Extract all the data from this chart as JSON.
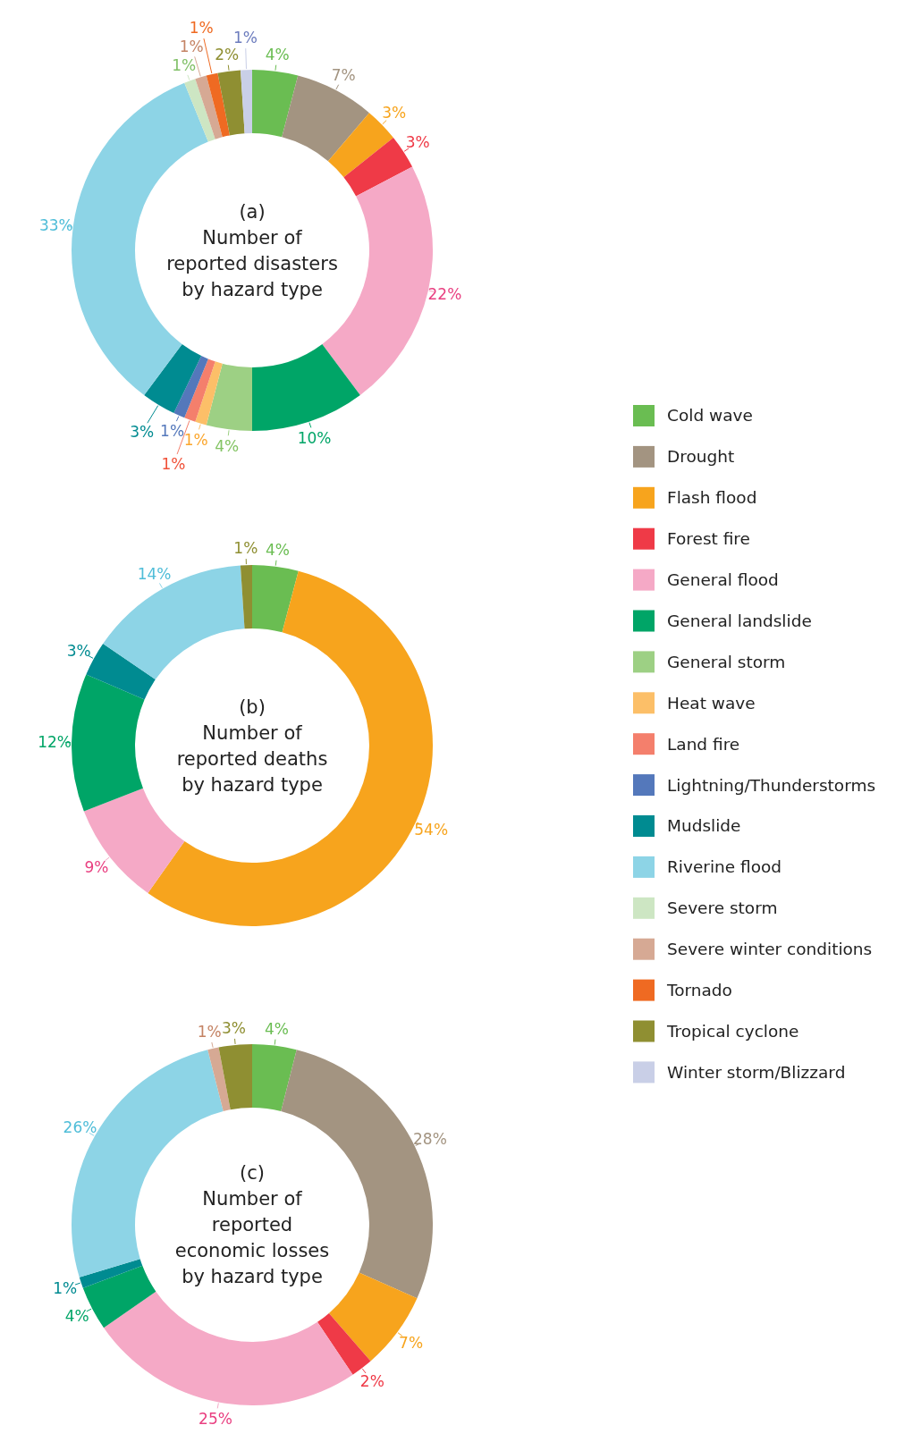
{
  "chart_data": [
    {
      "type": "donut",
      "title": "(a)\nNumber of\nreported disasters\nby hazard type",
      "legend": "right",
      "categories": [
        "Cold wave",
        "Drought",
        "Flash flood",
        "Forest fire",
        "General flood",
        "General landslide",
        "General storm",
        "Heat wave",
        "Land fire",
        "Lightning/Thunderstorms",
        "Mudslide",
        "Riverine flood",
        "Severe storm",
        "Severe winter conditions",
        "Tornado",
        "Tropical cyclone",
        "Winter storm/Blizzard"
      ],
      "values": [
        4,
        7,
        3,
        3,
        22,
        10,
        4,
        1,
        1,
        1,
        3,
        33,
        1,
        1,
        1,
        2,
        1
      ],
      "value_labels": [
        "4%",
        "7%",
        "3%",
        "3%",
        "22%",
        "10%",
        "4%",
        "1%",
        "1%",
        "1%",
        "3%",
        "33%",
        "1%",
        "1%",
        "1%",
        "2%",
        "1%"
      ],
      "colors": [
        "#6abd52",
        "#a39481",
        "#f7a41d",
        "#ef3a47",
        "#f5a9c6",
        "#00a567",
        "#9dd084",
        "#fcbf68",
        "#f47f6c",
        "#5478bb",
        "#008b91",
        "#8dd4e6",
        "#cde6c3",
        "#d6a994",
        "#ef6a22",
        "#8f8f32",
        "#c9cfe7"
      ]
    },
    {
      "type": "donut",
      "title": "(b)\nNumber of\nreported deaths\nby hazard type",
      "categories": [
        null,
        null,
        null,
        null,
        null,
        null,
        null
      ],
      "values": [
        4,
        54,
        9,
        12,
        3,
        14,
        1
      ],
      "value_labels": [
        "4%",
        "54%",
        "9%",
        "12%",
        "3%",
        "14%",
        "1%"
      ],
      "colors": [
        "#6abd52",
        "#f7a41d",
        "#f5a9c6",
        "#00a567",
        "#008b91",
        "#8dd4e6",
        "#8f8f32"
      ]
    },
    {
      "type": "donut",
      "title": "(c)\nNumber of\nreported\neconomic losses\nby hazard type",
      "categories": [
        null,
        null,
        null,
        null,
        null,
        null,
        null,
        null,
        null,
        null
      ],
      "values": [
        4,
        28,
        7,
        2,
        25,
        4,
        1,
        26,
        1,
        3
      ],
      "value_labels": [
        "4%",
        "28%",
        "7%",
        "2%",
        "25%",
        "4%",
        "1%",
        "26%",
        "1%",
        "3%"
      ],
      "colors": [
        "#6abd52",
        "#a39481",
        "#f7a41d",
        "#ef3a47",
        "#f5a9c6",
        "#00a567",
        "#008b91",
        "#8dd4e6",
        "#d6a994",
        "#8f8f32"
      ]
    }
  ]
}
